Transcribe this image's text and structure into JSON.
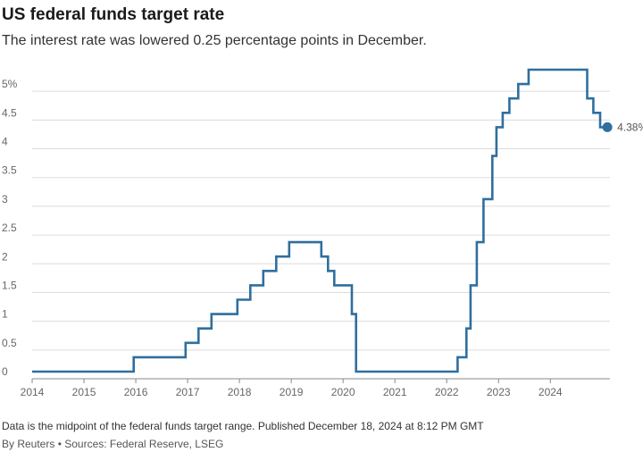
{
  "title": "US federal funds target rate",
  "subtitle": "The interest rate was lowered 0.25 percentage points in December.",
  "note": "Data is the midpoint of the federal funds target range. Published December 18, 2024 at 8:12 PM GMT",
  "credit": "By Reuters • Sources: Federal Reserve, LSEG",
  "chart_data": {
    "type": "line",
    "step": "after",
    "title": "US federal funds target rate",
    "subtitle": "The interest rate was lowered 0.25 percentage points in December.",
    "xlabel": "",
    "ylabel": "",
    "xlim": [
      2014,
      2025.15
    ],
    "ylim": [
      0,
      5.5
    ],
    "grid": true,
    "line_color": "#2f6f9f",
    "y_ticks": [
      {
        "v": 0,
        "label": "0"
      },
      {
        "v": 0.5,
        "label": "0.5"
      },
      {
        "v": 1,
        "label": "1"
      },
      {
        "v": 1.5,
        "label": "1.5"
      },
      {
        "v": 2,
        "label": "2"
      },
      {
        "v": 2.5,
        "label": "2.5"
      },
      {
        "v": 3,
        "label": "3"
      },
      {
        "v": 3.5,
        "label": "3.5"
      },
      {
        "v": 4,
        "label": "4"
      },
      {
        "v": 4.5,
        "label": "4.5"
      },
      {
        "v": 5,
        "label": "5%"
      }
    ],
    "x_ticks": [
      {
        "v": 2014,
        "label": "2014"
      },
      {
        "v": 2015,
        "label": "2015"
      },
      {
        "v": 2016,
        "label": "2016"
      },
      {
        "v": 2017,
        "label": "2017"
      },
      {
        "v": 2018,
        "label": "2018"
      },
      {
        "v": 2019,
        "label": "2019"
      },
      {
        "v": 2020,
        "label": "2020"
      },
      {
        "v": 2021,
        "label": "2021"
      },
      {
        "v": 2022,
        "label": "2022"
      },
      {
        "v": 2023,
        "label": "2023"
      },
      {
        "v": 2024,
        "label": "2024"
      }
    ],
    "points": [
      {
        "x": 2014.0,
        "y": 0.125
      },
      {
        "x": 2015.96,
        "y": 0.375
      },
      {
        "x": 2016.96,
        "y": 0.625
      },
      {
        "x": 2017.21,
        "y": 0.875
      },
      {
        "x": 2017.46,
        "y": 1.125
      },
      {
        "x": 2017.96,
        "y": 1.375
      },
      {
        "x": 2018.21,
        "y": 1.625
      },
      {
        "x": 2018.46,
        "y": 1.875
      },
      {
        "x": 2018.71,
        "y": 2.125
      },
      {
        "x": 2018.96,
        "y": 2.375
      },
      {
        "x": 2019.58,
        "y": 2.125
      },
      {
        "x": 2019.71,
        "y": 1.875
      },
      {
        "x": 2019.83,
        "y": 1.625
      },
      {
        "x": 2020.17,
        "y": 1.125
      },
      {
        "x": 2020.25,
        "y": 0.125
      },
      {
        "x": 2022.21,
        "y": 0.375
      },
      {
        "x": 2022.38,
        "y": 0.875
      },
      {
        "x": 2022.46,
        "y": 1.625
      },
      {
        "x": 2022.58,
        "y": 2.375
      },
      {
        "x": 2022.71,
        "y": 3.125
      },
      {
        "x": 2022.88,
        "y": 3.875
      },
      {
        "x": 2022.96,
        "y": 4.375
      },
      {
        "x": 2023.08,
        "y": 4.625
      },
      {
        "x": 2023.21,
        "y": 4.875
      },
      {
        "x": 2023.38,
        "y": 5.125
      },
      {
        "x": 2023.58,
        "y": 5.375
      },
      {
        "x": 2024.71,
        "y": 4.875
      },
      {
        "x": 2024.83,
        "y": 4.625
      },
      {
        "x": 2024.96,
        "y": 4.375
      }
    ],
    "end_label": "4.38%"
  }
}
